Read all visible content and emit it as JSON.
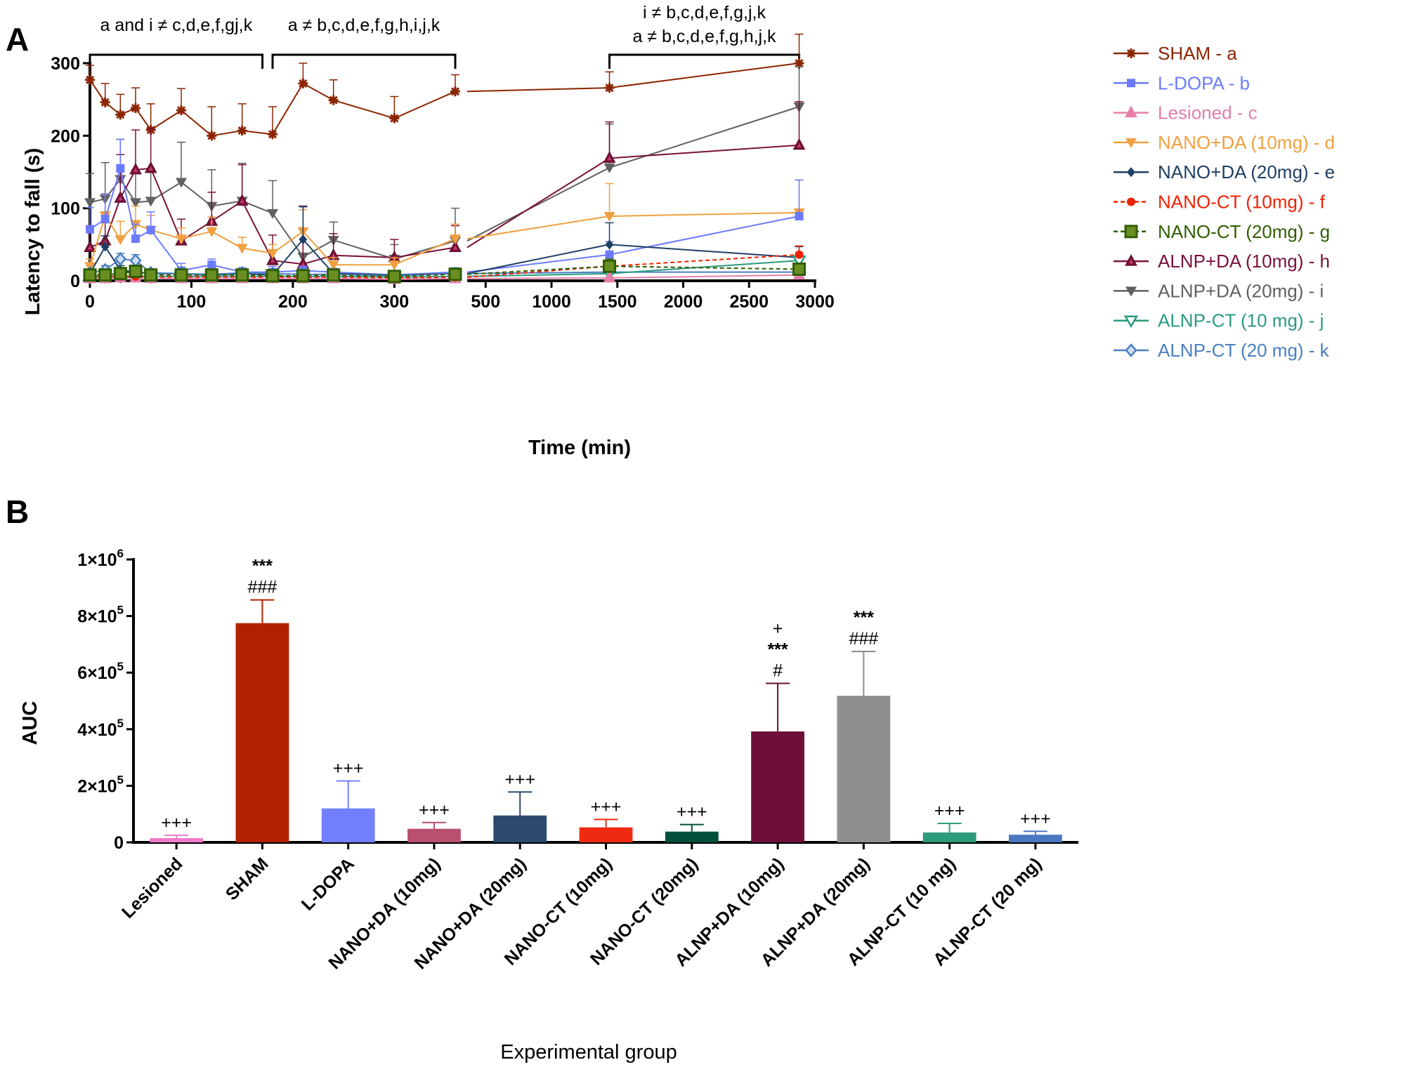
{
  "figure": {
    "panel_a": "A",
    "panel_b": "B"
  },
  "chart_data": [
    {
      "type": "line",
      "panel": "A",
      "ylabel": "Latency to fall (s)",
      "xlabel": "Time (min)",
      "ylim": [
        0,
        300
      ],
      "yticks": [
        "0",
        "100",
        "200",
        "300"
      ],
      "xsegments": [
        {
          "xlim": [
            0,
            360
          ],
          "ticks": [
            "0",
            "100",
            "200",
            "300"
          ],
          "tick_values": [
            0,
            100,
            200,
            300
          ]
        },
        {
          "xlim": [
            360,
            3000
          ],
          "ticks": [
            "500",
            "1000",
            "1500",
            "2000",
            "2500",
            "3000"
          ],
          "tick_values": [
            500,
            1000,
            1500,
            2000,
            2500,
            3000
          ]
        }
      ],
      "x": [
        0,
        15,
        30,
        45,
        60,
        90,
        120,
        150,
        180,
        210,
        240,
        300,
        360,
        1440,
        2880
      ],
      "brackets": [
        {
          "text": "a and i ≠ c,d,e,f,gj,k",
          "from": 0,
          "to": 170,
          "seg": 0
        },
        {
          "text": "a ≠ b,c,d,e,f,g,h,i,j,k",
          "from": 180,
          "to": 360,
          "seg": 0
        },
        {
          "text": "i ≠ b,c,d,e,f,g,j,k",
          "text2": "a ≠ b,c,d,e,f,g,h,j,k",
          "from": 1440,
          "to": 2880,
          "seg": 1
        }
      ],
      "series": [
        {
          "name": "SHAM - a",
          "color": "#8B2500",
          "marker": "star",
          "dashed": false,
          "values": [
            277,
            246,
            229,
            238,
            208,
            235,
            200,
            207,
            202,
            272,
            249,
            224,
            261,
            266,
            300
          ],
          "errors": [
            20,
            26,
            28,
            28,
            36,
            30,
            40,
            37,
            38,
            28,
            28,
            30,
            23,
            22,
            40
          ]
        },
        {
          "name": "L-DOPA - b",
          "color": "#6B7BFF",
          "marker": "square",
          "dashed": false,
          "values": [
            71,
            85,
            155,
            58,
            70,
            14,
            22,
            12,
            12,
            14,
            12,
            8,
            12,
            36,
            89
          ],
          "errors": [
            30,
            35,
            40,
            20,
            25,
            10,
            8,
            6,
            8,
            6,
            5,
            4,
            6,
            18,
            50
          ]
        },
        {
          "name": "Lesioned - c",
          "color": "#E57FA8",
          "marker": "triangle",
          "dashed": false,
          "values": [
            3,
            3,
            4,
            4,
            3,
            3,
            3,
            3,
            3,
            3,
            3,
            2,
            3,
            4,
            8
          ],
          "errors": [
            1,
            1,
            1,
            1,
            1,
            1,
            1,
            1,
            1,
            1,
            1,
            1,
            1,
            1,
            2
          ]
        },
        {
          "name": "NANO+DA (10mg) - d",
          "color": "#F0A040",
          "marker": "tridown",
          "dashed": false,
          "values": [
            20,
            90,
            57,
            78,
            70,
            58,
            68,
            45,
            38,
            68,
            22,
            22,
            58,
            89,
            94
          ],
          "errors": [
            10,
            30,
            25,
            25,
            20,
            15,
            20,
            15,
            12,
            30,
            10,
            10,
            20,
            45,
            45
          ]
        },
        {
          "name": "NANO+DA (20mg) - e",
          "color": "#1E3F66",
          "marker": "diamond",
          "dashed": false,
          "values": [
            10,
            47,
            15,
            12,
            10,
            10,
            8,
            10,
            8,
            57,
            10,
            8,
            10,
            50,
            32
          ],
          "errors": [
            5,
            15,
            6,
            5,
            4,
            4,
            3,
            4,
            3,
            45,
            5,
            3,
            4,
            30,
            15
          ]
        },
        {
          "name": "NANO-CT (10mg) - f",
          "color": "#EE2200",
          "marker": "circle",
          "dashed": true,
          "values": [
            5,
            6,
            6,
            6,
            5,
            5,
            5,
            5,
            5,
            5,
            5,
            4,
            5,
            20,
            36
          ],
          "errors": [
            2,
            2,
            2,
            2,
            2,
            2,
            2,
            2,
            2,
            2,
            2,
            2,
            2,
            8,
            12
          ]
        },
        {
          "name": "NANO-CT (20mg) - g",
          "color": "#2F5F00",
          "marker": "bigsquare",
          "dashed": true,
          "values": [
            8,
            8,
            10,
            13,
            8,
            8,
            8,
            8,
            7,
            7,
            8,
            6,
            9,
            20,
            16
          ],
          "errors": [
            4,
            4,
            5,
            6,
            4,
            4,
            4,
            4,
            3,
            3,
            4,
            3,
            4,
            10,
            8
          ]
        },
        {
          "name": "ALNP+DA (10mg) - h",
          "color": "#7A1038",
          "marker": "triangle",
          "dashed": false,
          "values": [
            46,
            55,
            114,
            153,
            155,
            55,
            82,
            110,
            28,
            23,
            35,
            32,
            46,
            169,
            187
          ],
          "errors": [
            30,
            35,
            60,
            55,
            55,
            30,
            40,
            50,
            35,
            80,
            30,
            25,
            30,
            50,
            60
          ]
        },
        {
          "name": "ALNP+DA (20mg) - i",
          "color": "#606060",
          "marker": "tridown",
          "dashed": false,
          "values": [
            108,
            113,
            140,
            108,
            110,
            136,
            103,
            110,
            93,
            33,
            56,
            30,
            55,
            156,
            240
          ],
          "errors": [
            40,
            50,
            55,
            45,
            45,
            55,
            50,
            52,
            45,
            70,
            25,
            20,
            45,
            60,
            55
          ]
        },
        {
          "name": "ALNP-CT (10 mg) - j",
          "color": "#2A9A80",
          "marker": "tridownopen",
          "dashed": false,
          "values": [
            5,
            6,
            6,
            7,
            6,
            6,
            6,
            6,
            6,
            6,
            6,
            5,
            6,
            10,
            28
          ],
          "errors": [
            2,
            2,
            2,
            2,
            2,
            2,
            2,
            2,
            2,
            2,
            2,
            2,
            2,
            5,
            10
          ]
        },
        {
          "name": "ALNP-CT (20 mg) - k",
          "color": "#4A7FC0",
          "marker": "diamondopen",
          "dashed": false,
          "values": [
            11,
            15,
            30,
            28,
            11,
            10,
            9,
            11,
            10,
            9,
            9,
            7,
            10,
            12,
            12
          ],
          "errors": [
            5,
            6,
            8,
            8,
            5,
            4,
            4,
            5,
            4,
            4,
            4,
            3,
            4,
            6,
            6
          ]
        }
      ]
    },
    {
      "type": "bar",
      "panel": "B",
      "ylabel": "AUC",
      "xlabel": "Experimental group",
      "ylim": [
        0,
        1000000
      ],
      "yticks": [
        {
          "value": 0,
          "label": "0",
          "exp": ""
        },
        {
          "value": 200000,
          "label": "2×10",
          "exp": "5"
        },
        {
          "value": 400000,
          "label": "4×10",
          "exp": "5"
        },
        {
          "value": 600000,
          "label": "6×10",
          "exp": "5"
        },
        {
          "value": 800000,
          "label": "8×10",
          "exp": "5"
        },
        {
          "value": 1000000,
          "label": "1×10",
          "exp": "6"
        }
      ],
      "categories": [
        "Lesioned",
        "SHAM",
        "L-DOPA",
        "NANO+DA (10mg)",
        "NANO+DA (20mg)",
        "NANO-CT (10mg)",
        "NANO-CT (20mg)",
        "ALNP+DA (10mg)",
        "ALNP+DA (20mg)",
        "ALNP-CT (10 mg)",
        "ALNP-CT (20 mg)"
      ],
      "values": [
        15000,
        775000,
        120000,
        48000,
        95000,
        53000,
        38000,
        392000,
        518000,
        35000,
        27000
      ],
      "errors": [
        10000,
        82000,
        97000,
        22000,
        83000,
        28000,
        25000,
        170000,
        157000,
        32000,
        12000
      ],
      "colors": [
        "#F07BC8",
        "#B22200",
        "#7280FF",
        "#B8506E",
        "#2B4A6E",
        "#F02A10",
        "#00503A",
        "#6E0F38",
        "#8E8E8E",
        "#2E9A7C",
        "#4A78C0"
      ],
      "annotations": [
        [
          "+++"
        ],
        [
          "***",
          "###"
        ],
        [
          "+++"
        ],
        [
          "+++"
        ],
        [
          "+++"
        ],
        [
          "+++"
        ],
        [
          "+++"
        ],
        [
          "+",
          "***",
          "#"
        ],
        [
          "***",
          "###"
        ],
        [
          "+++"
        ],
        [
          "+++"
        ]
      ]
    }
  ]
}
